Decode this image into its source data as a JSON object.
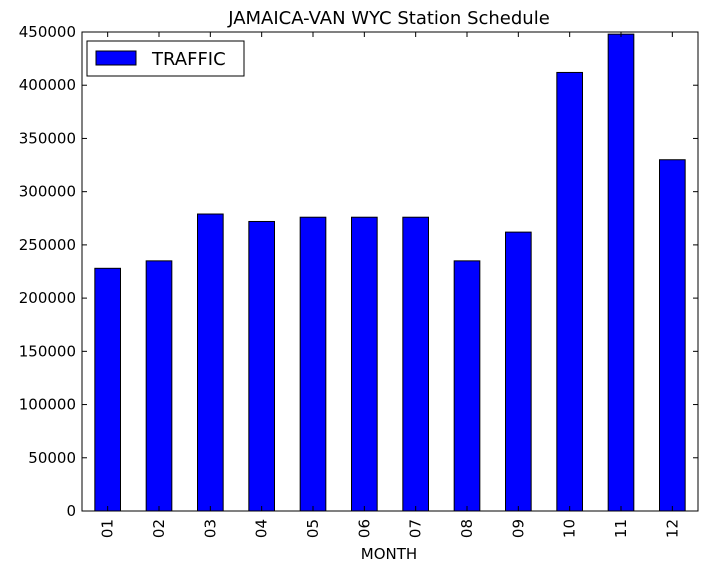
{
  "chart_data": {
    "type": "bar",
    "title": "JAMAICA-VAN WYC Station Schedule",
    "xlabel": "MONTH",
    "ylabel": "",
    "categories": [
      "01",
      "02",
      "03",
      "04",
      "05",
      "06",
      "07",
      "08",
      "09",
      "10",
      "11",
      "12"
    ],
    "series": [
      {
        "name": "TRAFFIC",
        "values": [
          228000,
          235000,
          279000,
          272000,
          276000,
          276000,
          276000,
          235000,
          262000,
          412000,
          448000,
          330000
        ],
        "color": "#0000ff"
      }
    ],
    "ylim": [
      0,
      450000
    ],
    "yticks": [
      "0",
      "50000",
      "100000",
      "150000",
      "200000",
      "250000",
      "300000",
      "350000",
      "400000",
      "450000"
    ],
    "legend": "top-left",
    "grid": false
  }
}
